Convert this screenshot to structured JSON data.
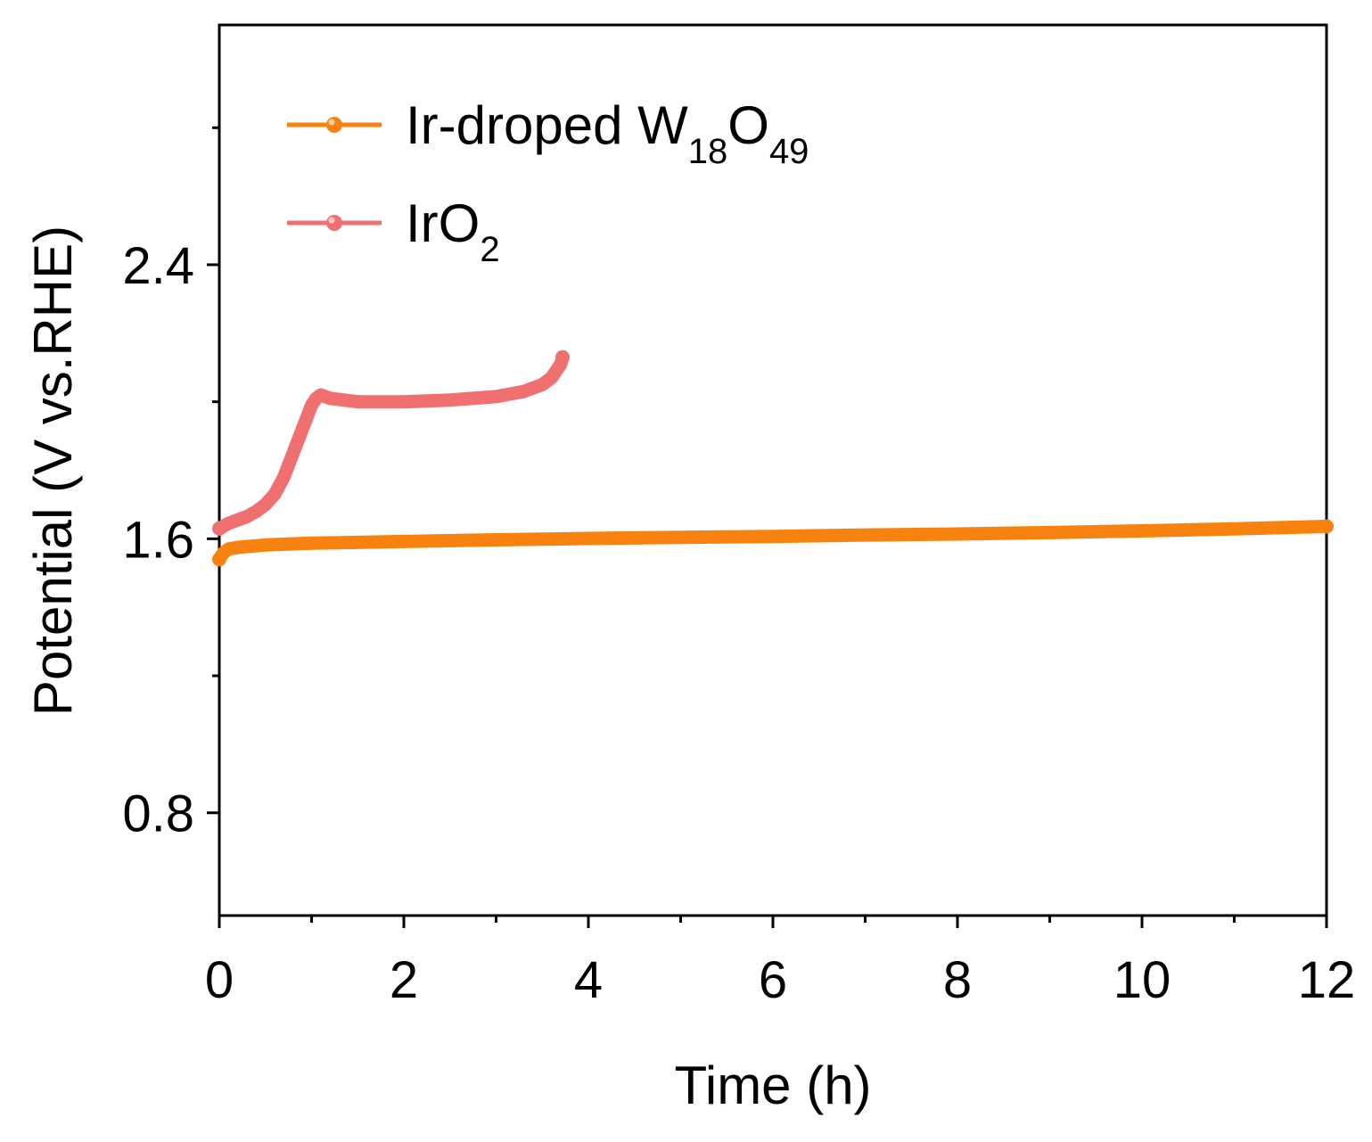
{
  "chart_data": {
    "type": "line",
    "title": "",
    "xlabel": "Time (h)",
    "ylabel": "Potential (V vs.RHE)",
    "xlim": [
      0,
      12
    ],
    "ylim": [
      0.5,
      3.1
    ],
    "x_ticks": [
      0,
      2,
      4,
      6,
      8,
      10,
      12
    ],
    "x_tick_labels": [
      "0",
      "2",
      "4",
      "6",
      "8",
      "10",
      "12"
    ],
    "x_minor_ticks": [
      1,
      3,
      5,
      7,
      9,
      11
    ],
    "y_ticks": [
      0.8,
      1.6,
      2.4
    ],
    "y_tick_labels": [
      "0.8",
      "1.6",
      "2.4"
    ],
    "y_minor_ticks": [
      1.2,
      2.0,
      2.8
    ],
    "grid": false,
    "legend_position": "top-left",
    "series": [
      {
        "name": "Ir-droped W18O49",
        "legend_parts": [
          {
            "text": "Ir-droped W",
            "sub": false
          },
          {
            "text": "18",
            "sub": true
          },
          {
            "text": "O",
            "sub": false
          },
          {
            "text": "49",
            "sub": true
          }
        ],
        "color": "#F7820F",
        "x": [
          0.0,
          0.02,
          0.05,
          0.1,
          0.2,
          0.5,
          1.0,
          2.0,
          3.0,
          4.0,
          5.0,
          6.0,
          7.0,
          8.0,
          9.0,
          10.0,
          11.0,
          12.0
        ],
        "y": [
          1.54,
          1.55,
          1.56,
          1.57,
          1.575,
          1.582,
          1.587,
          1.592,
          1.597,
          1.601,
          1.604,
          1.607,
          1.611,
          1.614,
          1.618,
          1.623,
          1.629,
          1.636
        ]
      },
      {
        "name": "IrO2",
        "legend_parts": [
          {
            "text": "IrO",
            "sub": false
          },
          {
            "text": "2",
            "sub": true
          }
        ],
        "color": "#F07070",
        "x": [
          0.0,
          0.1,
          0.2,
          0.3,
          0.4,
          0.5,
          0.6,
          0.7,
          0.8,
          0.9,
          1.0,
          1.05,
          1.1,
          1.2,
          1.5,
          2.0,
          2.5,
          3.0,
          3.3,
          3.5,
          3.6,
          3.65,
          3.7,
          3.72
        ],
        "y": [
          1.63,
          1.645,
          1.655,
          1.665,
          1.68,
          1.7,
          1.73,
          1.78,
          1.85,
          1.92,
          1.99,
          2.01,
          2.02,
          2.01,
          2.0,
          2.0,
          2.005,
          2.015,
          2.03,
          2.05,
          2.07,
          2.09,
          2.11,
          2.13
        ]
      }
    ]
  }
}
